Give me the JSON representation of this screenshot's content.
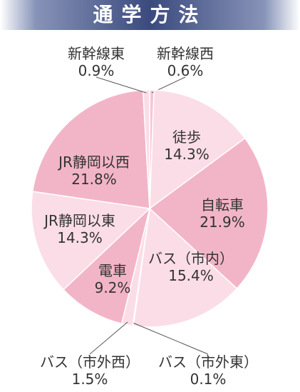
{
  "chart_data": {
    "type": "pie",
    "title": "通学方法",
    "categories": [
      "新幹線西",
      "徒歩",
      "自転車",
      "バス（市内）",
      "バス（市外東）",
      "バス（市外西）",
      "電車",
      "JR静岡以東",
      "JR静岡以西",
      "新幹線東"
    ],
    "values": [
      0.6,
      14.3,
      21.9,
      15.4,
      0.1,
      1.5,
      9.2,
      14.3,
      21.8,
      0.9
    ],
    "value_labels": [
      "0.6%",
      "14.3%",
      "21.9%",
      "15.4%",
      "0.1%",
      "1.5%",
      "9.2%",
      "14.3%",
      "21.8%",
      "0.9%"
    ],
    "colors": [
      "#f6c7d5",
      "#fbdde7",
      "#f2b5c7",
      "#fbdde7",
      "#f6c7d5",
      "#fbdde7",
      "#f2b5c7",
      "#fbdde7",
      "#f2b5c7",
      "#fbdde7"
    ]
  }
}
